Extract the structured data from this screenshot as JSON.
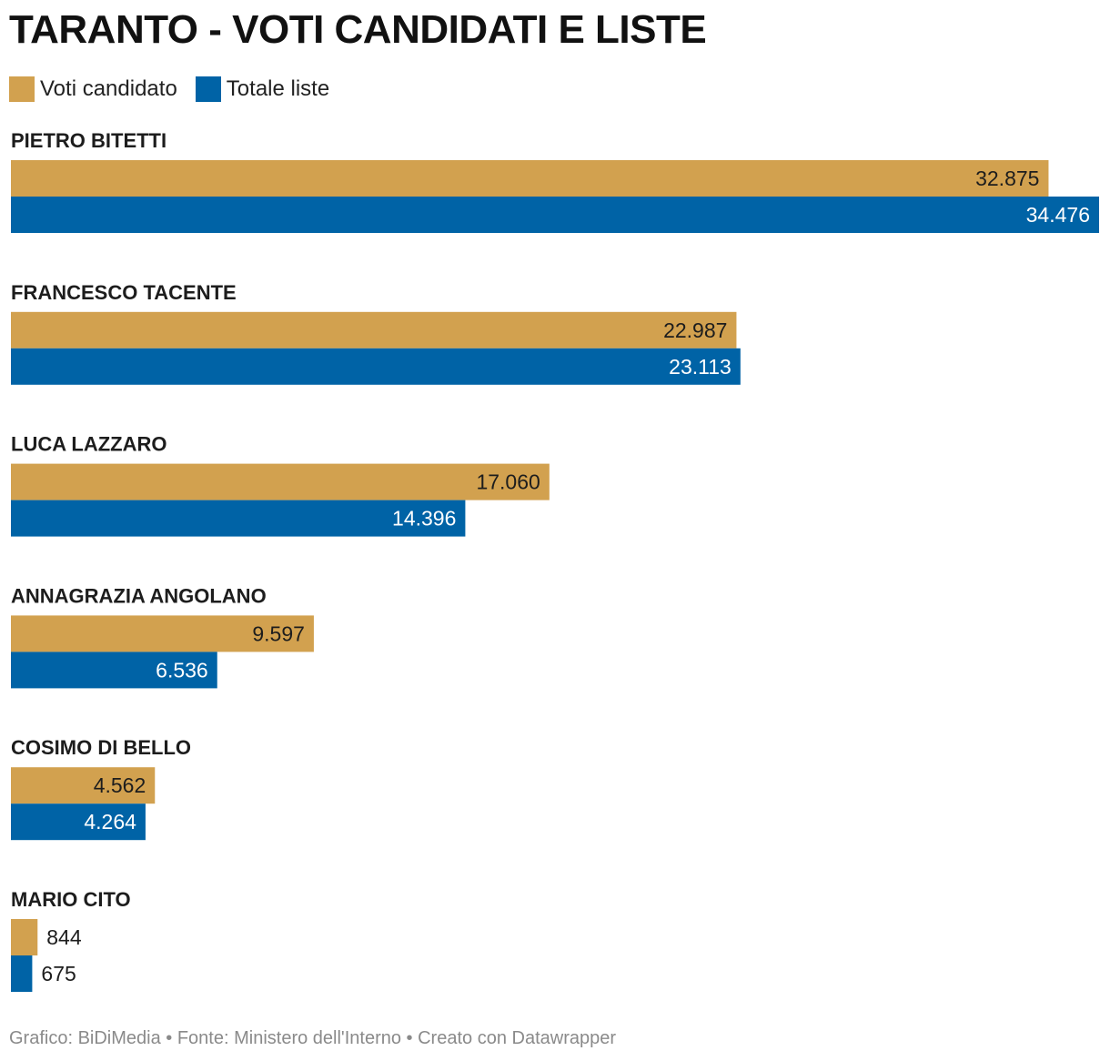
{
  "chart_data": {
    "type": "bar",
    "orientation": "horizontal",
    "title": "TARANTO - VOTI CANDIDATI E LISTE",
    "categories": [
      "PIETRO BITETTI",
      "FRANCESCO TACENTE",
      "LUCA LAZZARO",
      "ANNAGRAZIA ANGOLANO",
      "COSIMO DI BELLO",
      "MARIO CITO"
    ],
    "series": [
      {
        "name": "Voti candidato",
        "color": "#d2a14f",
        "values": [
          32875,
          22987,
          17060,
          9597,
          4562,
          844
        ],
        "labels": [
          "32.875",
          "22.987",
          "17.060",
          "9.597",
          "4.562",
          "844"
        ]
      },
      {
        "name": "Totale liste",
        "color": "#0063a6",
        "values": [
          34476,
          23113,
          14396,
          6536,
          4264,
          675
        ],
        "labels": [
          "34.476",
          "23.113",
          "14.396",
          "6.536",
          "4.264",
          "675"
        ]
      }
    ],
    "xlim": [
      0,
      34476
    ],
    "legend_position": "top-left",
    "grid": false,
    "xlabel": "",
    "ylabel": ""
  },
  "footer": "Grafico: BiDiMedia • Fonte: Ministero dell'Interno • Creato con Datawrapper"
}
